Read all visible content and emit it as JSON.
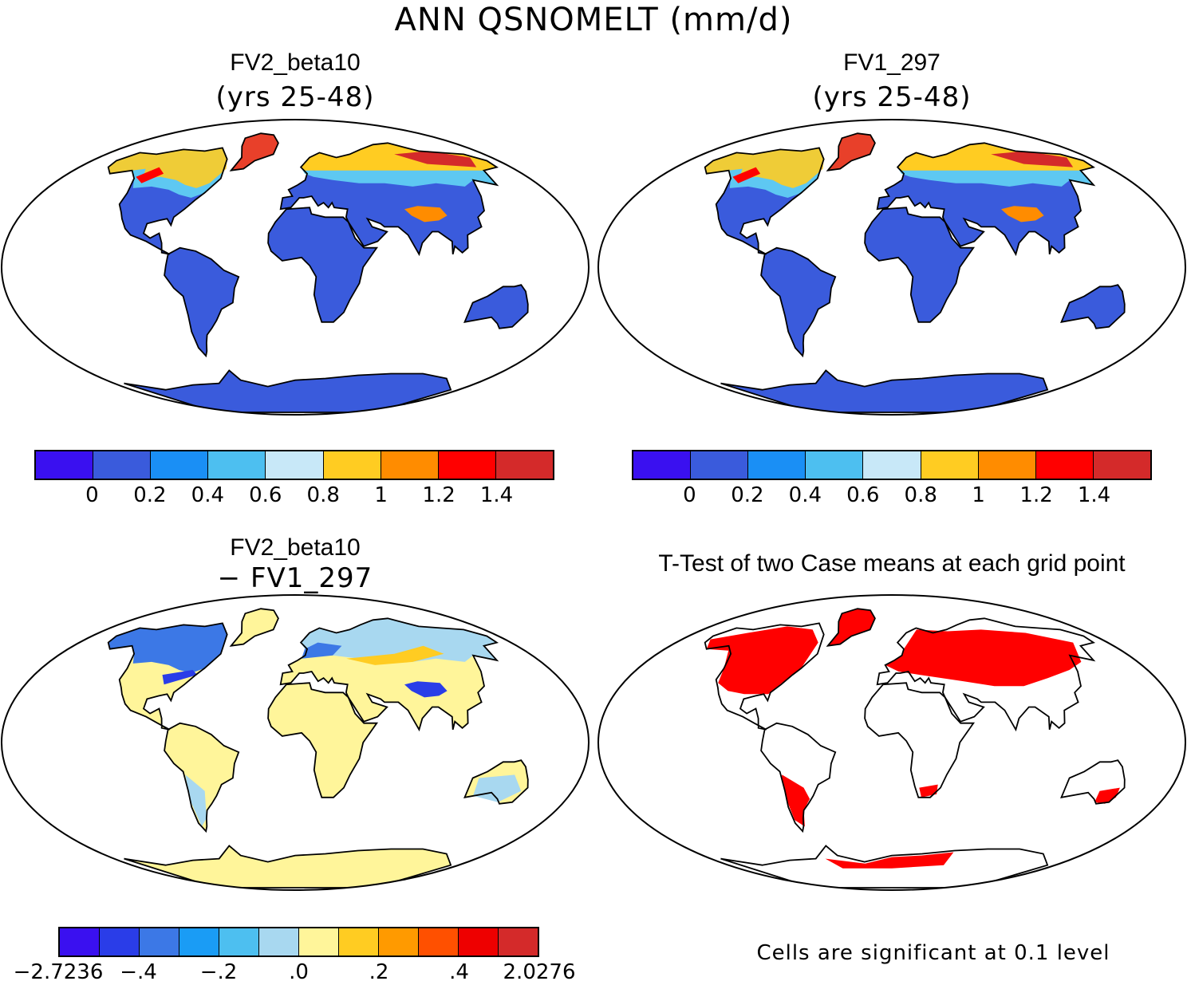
{
  "title": "ANN QSNOMELT (mm/d)",
  "panels": [
    {
      "id": "p1",
      "title": "FV2_beta10",
      "subtitle": "(yrs 25-48)",
      "land_color": "#3a5bdc",
      "highlats": [
        {
          "c": "#e8402a",
          "w": "r"
        },
        {
          "c": "#ffcc22",
          "w": "y"
        },
        {
          "c": "#5ec8f2",
          "w": "b"
        }
      ]
    },
    {
      "id": "p2",
      "title": "FV1_297",
      "subtitle": "(yrs 25-48)",
      "land_color": "#3a5bdc"
    },
    {
      "id": "p3",
      "title": "FV2_beta10",
      "subtitle": "− FV1_297",
      "land_color": "#fff59a"
    },
    {
      "id": "p4",
      "title": "T-Test of two Case means at each grid point",
      "note": "Cells are significant at 0.1 level",
      "land_color": "#ffffff",
      "sig_color": "#ff0000"
    }
  ],
  "colorbar_top": {
    "colors": [
      "#3a10f0",
      "#3a5bdc",
      "#1a8ff5",
      "#4dbff0",
      "#c8e8f8",
      "#ffcc22",
      "#ff8c00",
      "#ff0000",
      "#d42a2a"
    ],
    "ticks": [
      "0",
      "0.2",
      "0.4",
      "0.6",
      "0.8",
      "1",
      "1.2",
      "1.4"
    ]
  },
  "colorbar_diff": {
    "colors": [
      "#3a10f0",
      "#2a3de8",
      "#3c78e6",
      "#1a9cf5",
      "#4dbff0",
      "#a8d8f0",
      "#fff59a",
      "#ffcc22",
      "#ff9a00",
      "#ff5000",
      "#ee0000",
      "#d42a2a"
    ],
    "ticks": [
      "−2.7236",
      "−.4",
      "−.2",
      ".0",
      ".2",
      ".4",
      "2.0276"
    ]
  }
}
